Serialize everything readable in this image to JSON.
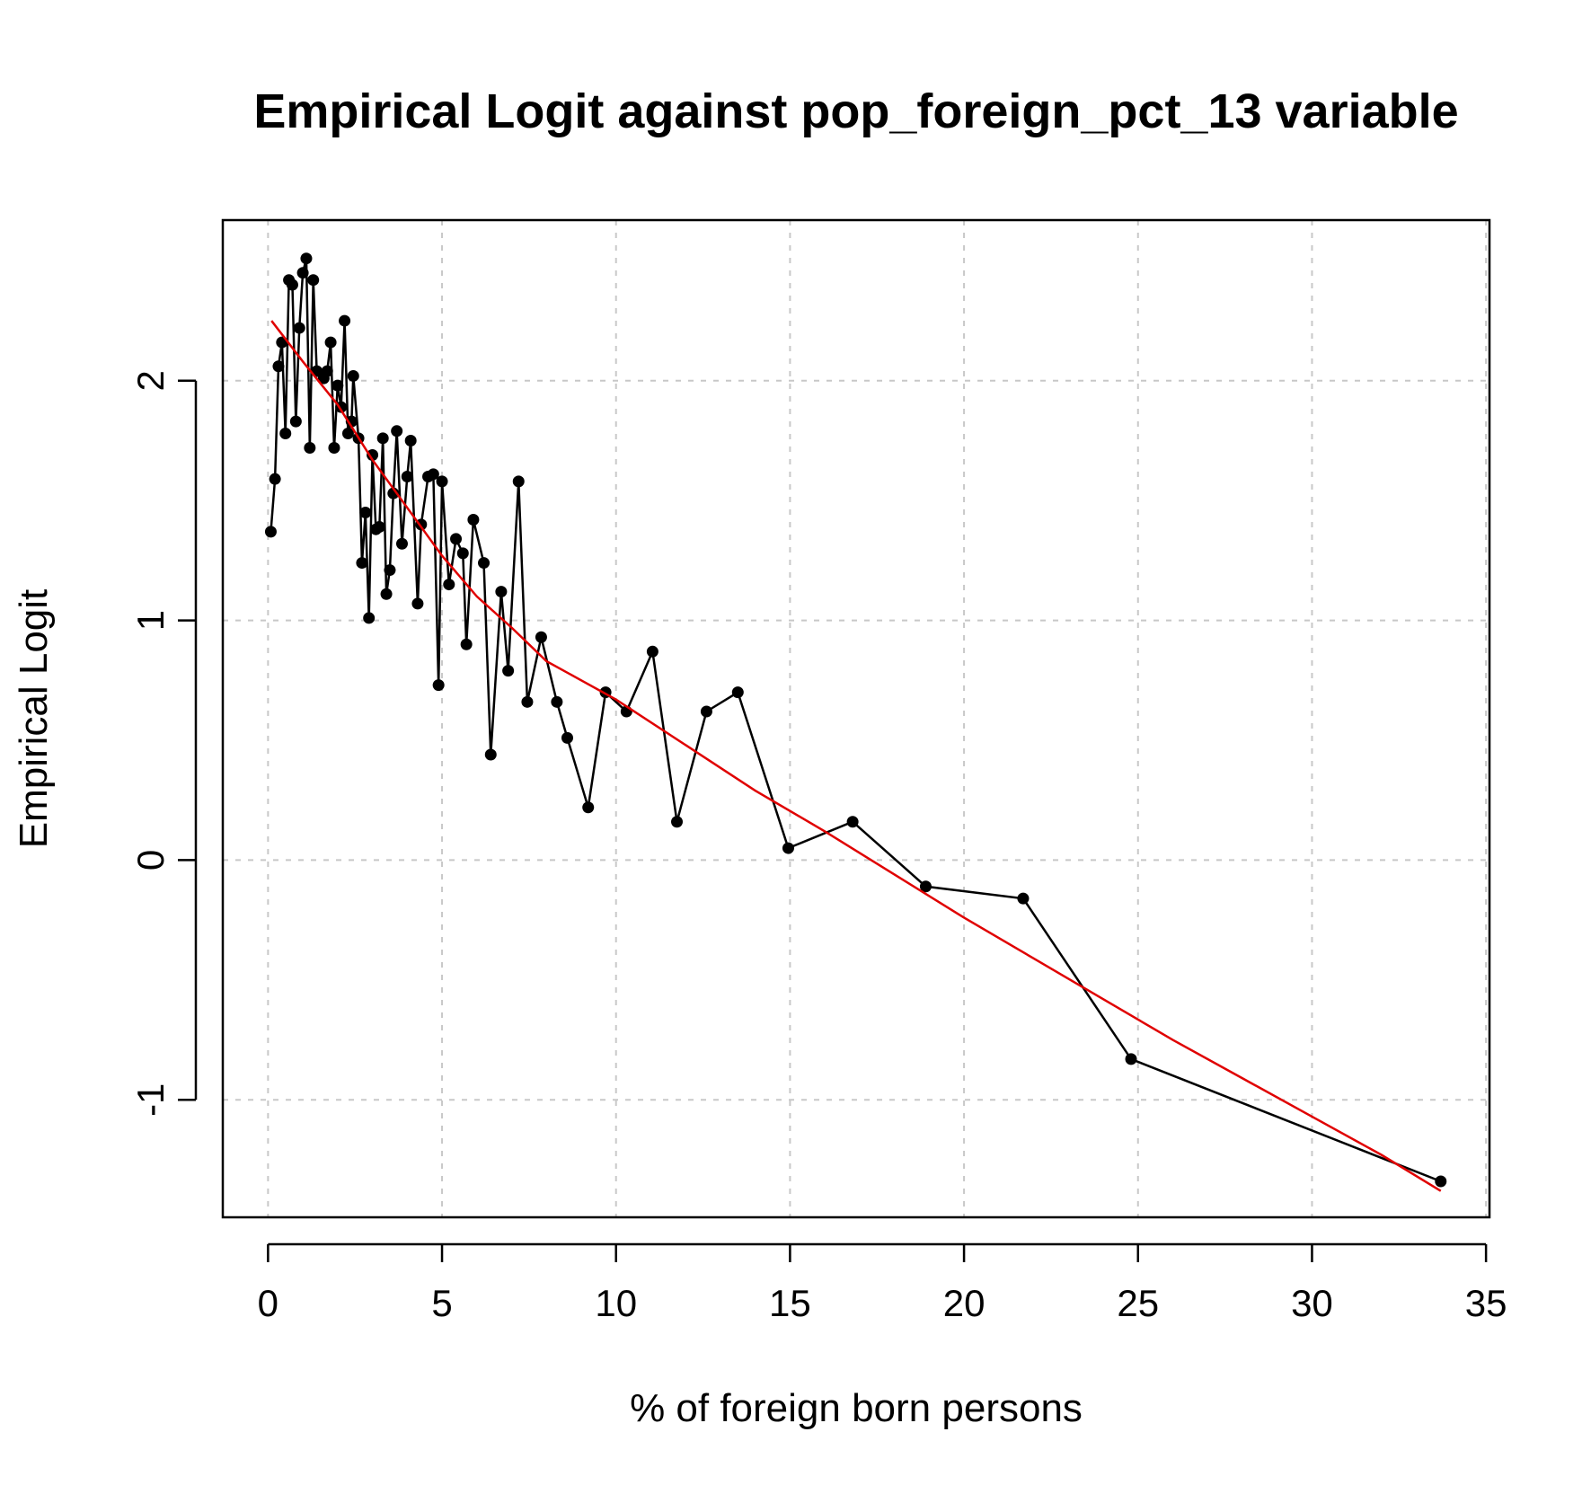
{
  "chart_data": {
    "type": "line",
    "title": "Empirical Logit against pop_foreign_pct_13 variable",
    "xlabel": "% of foreign born persons",
    "ylabel": "Empirical Logit",
    "xlim": [
      -1.3,
      35.1
    ],
    "ylim": [
      -1.49,
      2.67
    ],
    "x_ticks": [
      0,
      5,
      10,
      15,
      20,
      25,
      30,
      35
    ],
    "y_ticks": [
      -1,
      0,
      1,
      2
    ],
    "grid": true,
    "legend": "none",
    "series": [
      {
        "style": "points-and-lines",
        "color": "#000000",
        "points": [
          [
            0.08,
            1.37
          ],
          [
            0.2,
            1.59
          ],
          [
            0.3,
            2.06
          ],
          [
            0.4,
            2.16
          ],
          [
            0.5,
            1.78
          ],
          [
            0.6,
            2.42
          ],
          [
            0.7,
            2.4
          ],
          [
            0.8,
            1.83
          ],
          [
            0.9,
            2.22
          ],
          [
            1.0,
            2.45
          ],
          [
            1.1,
            2.51
          ],
          [
            1.2,
            1.72
          ],
          [
            1.3,
            2.42
          ],
          [
            1.4,
            2.04
          ],
          [
            1.6,
            2.01
          ],
          [
            1.7,
            2.04
          ],
          [
            1.8,
            2.16
          ],
          [
            1.9,
            1.72
          ],
          [
            2.0,
            1.98
          ],
          [
            2.1,
            1.89
          ],
          [
            2.2,
            2.25
          ],
          [
            2.3,
            1.78
          ],
          [
            2.4,
            1.83
          ],
          [
            2.45,
            2.02
          ],
          [
            2.6,
            1.76
          ],
          [
            2.7,
            1.24
          ],
          [
            2.8,
            1.45
          ],
          [
            2.9,
            1.01
          ],
          [
            3.0,
            1.69
          ],
          [
            3.1,
            1.38
          ],
          [
            3.2,
            1.39
          ],
          [
            3.3,
            1.76
          ],
          [
            3.4,
            1.11
          ],
          [
            3.5,
            1.21
          ],
          [
            3.6,
            1.53
          ],
          [
            3.7,
            1.79
          ],
          [
            3.85,
            1.32
          ],
          [
            4.0,
            1.6
          ],
          [
            4.1,
            1.75
          ],
          [
            4.3,
            1.07
          ],
          [
            4.4,
            1.4
          ],
          [
            4.6,
            1.6
          ],
          [
            4.75,
            1.61
          ],
          [
            4.9,
            0.73
          ],
          [
            5.0,
            1.58
          ],
          [
            5.2,
            1.15
          ],
          [
            5.4,
            1.34
          ],
          [
            5.6,
            1.28
          ],
          [
            5.7,
            0.9
          ],
          [
            5.9,
            1.42
          ],
          [
            6.2,
            1.24
          ],
          [
            6.4,
            0.44
          ],
          [
            6.7,
            1.12
          ],
          [
            6.9,
            0.79
          ],
          [
            7.2,
            1.58
          ],
          [
            7.45,
            0.66
          ],
          [
            7.85,
            0.93
          ],
          [
            8.3,
            0.66
          ],
          [
            8.6,
            0.51
          ],
          [
            9.2,
            0.22
          ],
          [
            9.7,
            0.7
          ],
          [
            10.3,
            0.62
          ],
          [
            11.05,
            0.87
          ],
          [
            11.75,
            0.16
          ],
          [
            12.6,
            0.62
          ],
          [
            13.5,
            0.7
          ],
          [
            14.95,
            0.05
          ],
          [
            16.8,
            0.16
          ],
          [
            18.9,
            -0.11
          ],
          [
            21.7,
            -0.16
          ],
          [
            24.8,
            -0.83
          ],
          [
            33.7,
            -1.34
          ]
        ]
      },
      {
        "style": "line",
        "color": "#e00000",
        "points": [
          [
            0.1,
            2.25
          ],
          [
            1.0,
            2.08
          ],
          [
            2.0,
            1.9
          ],
          [
            3.0,
            1.67
          ],
          [
            4.0,
            1.47
          ],
          [
            5.0,
            1.27
          ],
          [
            6.0,
            1.1
          ],
          [
            7.0,
            0.97
          ],
          [
            8.0,
            0.83
          ],
          [
            9.0,
            0.75
          ],
          [
            10.0,
            0.67
          ],
          [
            12.0,
            0.48
          ],
          [
            14.0,
            0.29
          ],
          [
            16.0,
            0.12
          ],
          [
            18.0,
            -0.06
          ],
          [
            20.0,
            -0.24
          ],
          [
            22.0,
            -0.41
          ],
          [
            24.0,
            -0.58
          ],
          [
            26.0,
            -0.75
          ],
          [
            28.0,
            -0.91
          ],
          [
            30.0,
            -1.07
          ],
          [
            32.0,
            -1.23
          ],
          [
            33.7,
            -1.38
          ]
        ]
      }
    ]
  }
}
